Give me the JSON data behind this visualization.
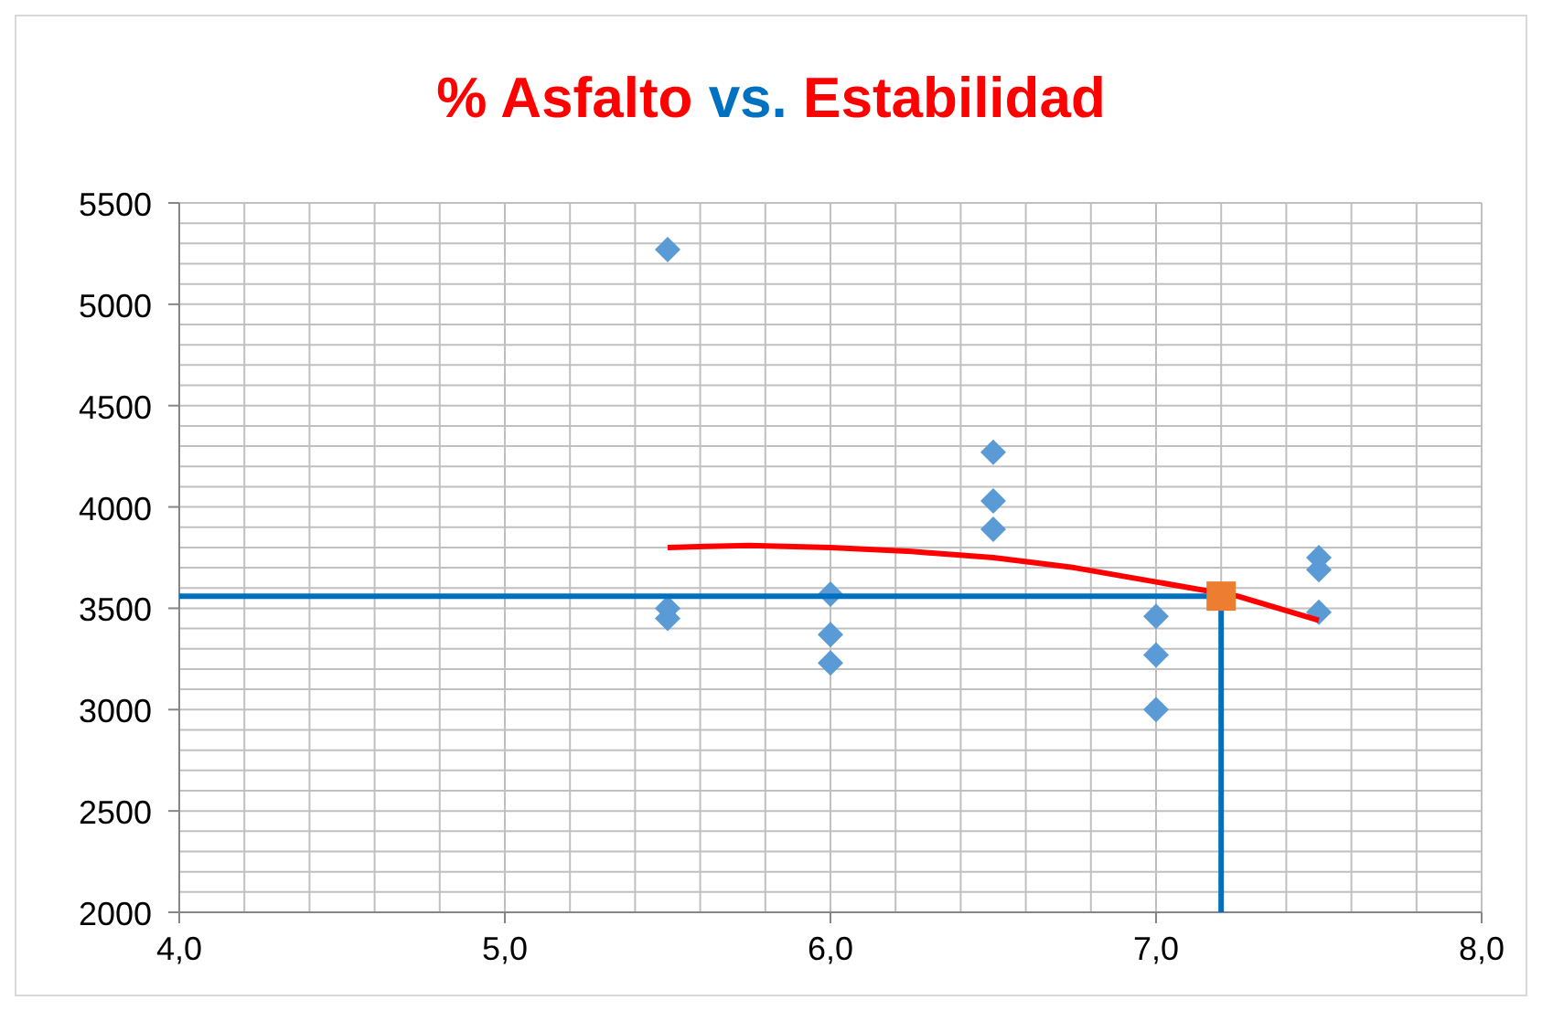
{
  "chart_data": {
    "type": "scatter",
    "title": "% Asfalto vs. Estabilidad",
    "xlim": [
      4,
      8
    ],
    "xticks": [
      {
        "value": 4,
        "label": "4,0"
      },
      {
        "value": 4.2,
        "label": null
      },
      {
        "value": 4.4,
        "label": null
      },
      {
        "value": 4.6,
        "label": null
      },
      {
        "value": 4.8,
        "label": null
      },
      {
        "value": 5,
        "label": "5,0"
      },
      {
        "value": 5.2,
        "label": null
      },
      {
        "value": 5.4,
        "label": null
      },
      {
        "value": 5.6,
        "label": null
      },
      {
        "value": 5.8,
        "label": null
      },
      {
        "value": 6,
        "label": "6,0"
      },
      {
        "value": 6.2,
        "label": null
      },
      {
        "value": 6.4,
        "label": null
      },
      {
        "value": 6.6,
        "label": null
      },
      {
        "value": 6.8,
        "label": null
      },
      {
        "value": 7,
        "label": "7,0"
      },
      {
        "value": 7.2,
        "label": null
      },
      {
        "value": 7.4,
        "label": null
      },
      {
        "value": 7.6,
        "label": null
      },
      {
        "value": 7.8,
        "label": null
      },
      {
        "value": 8,
        "label": "8,0"
      }
    ],
    "ylim": [
      2000,
      5500
    ],
    "yticks": [
      2000,
      {
        "value": 2100,
        "label": null
      },
      {
        "value": 2200,
        "label": null
      },
      {
        "value": 2300,
        "label": null
      },
      {
        "value": 2400,
        "label": null
      },
      2500,
      {
        "value": 2600,
        "label": null
      },
      {
        "value": 2700,
        "label": null
      },
      {
        "value": 2800,
        "label": null
      },
      {
        "value": 2900,
        "label": null
      },
      3000,
      {
        "value": 3100,
        "label": null
      },
      {
        "value": 3200,
        "label": null
      },
      {
        "value": 3300,
        "label": null
      },
      {
        "value": 3400,
        "label": null
      },
      3500,
      {
        "value": 3600,
        "label": null
      },
      {
        "value": 3700,
        "label": null
      },
      {
        "value": 3800,
        "label": null
      },
      {
        "value": 3900,
        "label": null
      },
      4000,
      {
        "value": 4100,
        "label": null
      },
      {
        "value": 4200,
        "label": null
      },
      {
        "value": 4300,
        "label": null
      },
      {
        "value": 4400,
        "label": null
      },
      4500,
      {
        "value": 4600,
        "label": null
      },
      {
        "value": 4700,
        "label": null
      },
      {
        "value": 4800,
        "label": null
      },
      {
        "value": 4900,
        "label": null
      },
      5000,
      {
        "value": 5100,
        "label": null
      },
      {
        "value": 5200,
        "label": null
      },
      {
        "value": 5300,
        "label": null
      },
      {
        "value": 5400,
        "label": null
      },
      5500
    ],
    "grid": true,
    "legend": false,
    "series": [
      {
        "type": "scatter",
        "marker": "diamond",
        "color": "#5b9bd5",
        "x": [
          5.5,
          5.5,
          5.5,
          6,
          6,
          6,
          6.5,
          6.5,
          6.5,
          7,
          7,
          7,
          7.5,
          7.5,
          7.5
        ],
        "values": [
          5270,
          3500,
          3450,
          3570,
          3370,
          3230,
          4270,
          4030,
          3890,
          3460,
          3270,
          3000,
          3750,
          3690,
          3480
        ]
      },
      {
        "type": "line",
        "marker": "none",
        "color": "#0070c0",
        "x": [
          4,
          7.2
        ],
        "values": [
          3560,
          3560
        ]
      },
      {
        "type": "line",
        "marker": "none",
        "color": "#0070c0",
        "x": [
          7.2,
          7.2
        ],
        "values": [
          2000,
          3560
        ]
      },
      {
        "type": "line",
        "marker": "none",
        "color": "#ff0000",
        "x": [
          5.5,
          5.75,
          6,
          6.25,
          6.5,
          6.75,
          7,
          7.25,
          7.5
        ],
        "values": [
          3800,
          3810,
          3800,
          3780,
          3750,
          3700,
          3630,
          3560,
          3440
        ]
      },
      {
        "type": "scatter",
        "marker": "square",
        "color": "#ed7d31",
        "x": [
          7.2
        ],
        "values": [
          3560
        ]
      }
    ]
  }
}
